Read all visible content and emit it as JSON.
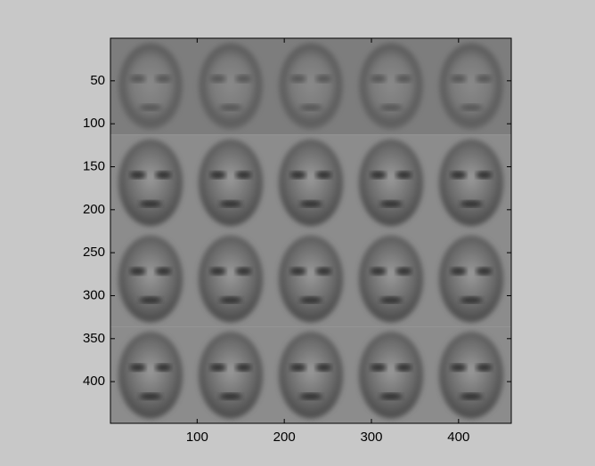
{
  "chart_data": {
    "type": "image",
    "rows": 4,
    "cols": 5,
    "xlim": [
      0.5,
      460.5
    ],
    "ylim": [
      0.5,
      448.5
    ],
    "y_reversed": true,
    "xticks": [
      100,
      200,
      300,
      400
    ],
    "yticks": [
      50,
      100,
      150,
      200,
      250,
      300,
      350,
      400
    ]
  }
}
